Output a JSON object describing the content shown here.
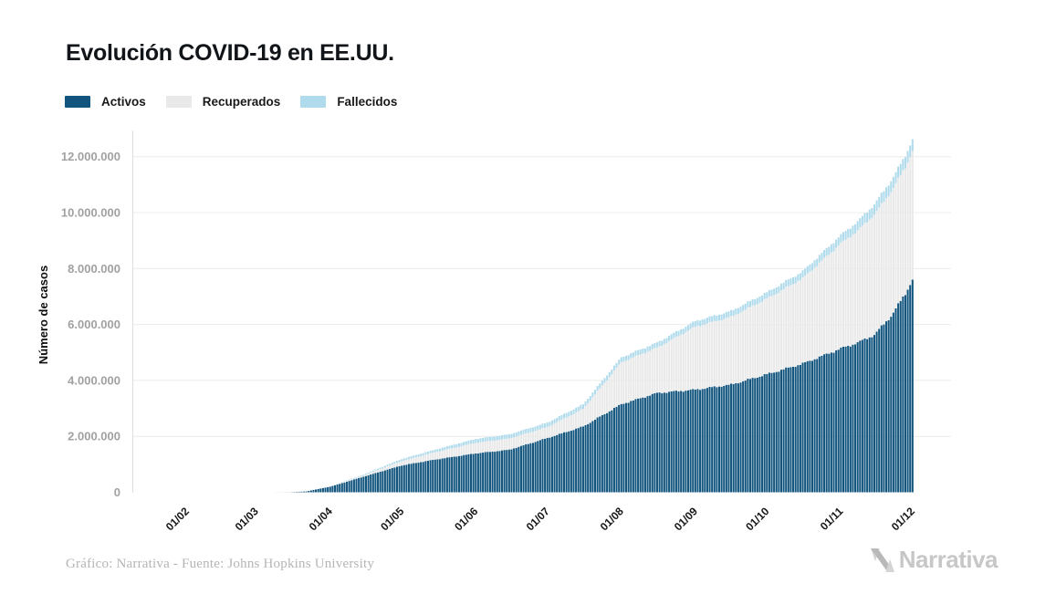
{
  "header": {
    "title": "Evolución COVID-19 en EE.UU."
  },
  "legend": {
    "items": [
      {
        "label": "Activos",
        "color": "#11557e"
      },
      {
        "label": "Recuperados",
        "color": "#e9e9e9"
      },
      {
        "label": "Fallecidos",
        "color": "#b0dbec"
      }
    ]
  },
  "footer": {
    "credit": "Gráfico: Narrativa - Fuente: Johns Hopkins University",
    "brand": "Narrativa"
  },
  "chart_data": {
    "type": "bar",
    "stacked": true,
    "title": "Evolución COVID-19 en EE.UU.",
    "xlabel": "",
    "ylabel": "Número de casos",
    "legend_position": "top",
    "grid": "horizontal",
    "ylim": [
      0,
      12770000
    ],
    "yticks": [
      0,
      2000000,
      4000000,
      6000000,
      8000000,
      10000000,
      12000000
    ],
    "ytick_labels": [
      "0",
      "2.000.000",
      "4.000.000",
      "6.000.000",
      "8.000.000",
      "10.000.000",
      "12.000.000"
    ],
    "xticklabels": [
      "01/02",
      "01/03",
      "01/04",
      "01/05",
      "01/06",
      "01/07",
      "01/08",
      "01/09",
      "01/10",
      "01/11",
      "01/12"
    ],
    "xtick_days": [
      10,
      39,
      70,
      100,
      131,
      161,
      192,
      223,
      253,
      284,
      314
    ],
    "x_domain_days": [
      0,
      314
    ],
    "anchor_days": [
      0,
      39,
      53,
      60,
      70,
      84,
      100,
      114,
      131,
      145,
      161,
      176,
      192,
      207,
      223,
      238,
      253,
      268,
      284,
      291,
      298,
      305,
      311,
      314
    ],
    "series": [
      {
        "name": "Activos",
        "color": "#11557e",
        "values": [
          0,
          100,
          3000,
          30000,
          200000,
          560000,
          960000,
          1170000,
          1390000,
          1520000,
          1940000,
          2350000,
          3150000,
          3550000,
          3670000,
          3850000,
          4220000,
          4600000,
          5140000,
          5350000,
          5630000,
          6300000,
          7100000,
          7620000
        ]
      },
      {
        "name": "Recuperados",
        "color": "#e9e9e9",
        "values": [
          0,
          0,
          100,
          1000,
          10000,
          48000,
          155000,
          260000,
          380000,
          400000,
          390000,
          630000,
          1500000,
          1620000,
          2250000,
          2420000,
          2700000,
          3050000,
          3760000,
          4000000,
          4300000,
          4450000,
          4520000,
          4600000
        ]
      },
      {
        "name": "Fallecidos",
        "color": "#b0dbec",
        "values": [
          0,
          0,
          100,
          500,
          5000,
          28000,
          75000,
          95000,
          140000,
          150000,
          160000,
          165000,
          175000,
          180000,
          200000,
          210000,
          225000,
          250000,
          300000,
          330000,
          370000,
          390000,
          410000,
          420000
        ]
      }
    ]
  }
}
